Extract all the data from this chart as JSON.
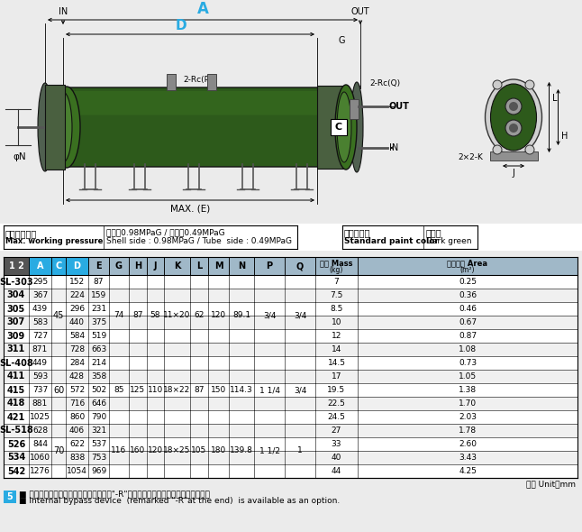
{
  "bg_color": "#ebebeb",
  "pressure_label_jp": "最高使用圧力",
  "pressure_label_en": "Max. working pressure",
  "pressure_value_jp": "胴側：0.98MPaG / 管側：0.49MPaG",
  "pressure_value_en": "Shell side : 0.98MPaG / Tube  side : 0.49MPaG",
  "color_label_jp": "標準塗装色",
  "color_label_en": "Standard paint color",
  "color_value_jp": "暗緑色",
  "color_value_en": "Dark green",
  "unit_note": "単位 Unit：mm",
  "note1_jp": "■ 管束内にバイパス回路（型式最後尾に\"-R\"付）を設けたタイプも製作致します。",
  "note1_en": "■ Internal bypass device  (remarked \"-R\"at the end)  is available as an option.",
  "note_num": "5",
  "header_cols": [
    "1 2",
    "A",
    "C",
    "D",
    "E",
    "G",
    "H",
    "J",
    "K",
    "L",
    "M",
    "N",
    "P",
    "Q",
    "質量 Mass\n(kg)",
    "伝熱面積 Area\n(m²)"
  ],
  "rows": [
    [
      "SL-303",
      "295",
      "",
      "152",
      "87",
      "",
      "",
      "",
      "",
      "",
      "",
      "",
      "",
      "",
      "7",
      "0.25"
    ],
    [
      "304",
      "367",
      "",
      "224",
      "159",
      "",
      "",
      "",
      "",
      "",
      "",
      "",
      "",
      "",
      "7.5",
      "0.36"
    ],
    [
      "305",
      "439",
      "45",
      "296",
      "231",
      "74",
      "87",
      "58",
      "11×20",
      "62",
      "120",
      "89.1",
      "3/4",
      "3/4",
      "8.5",
      "0.46"
    ],
    [
      "307",
      "583",
      "",
      "440",
      "375",
      "",
      "",
      "",
      "",
      "",
      "",
      "",
      "",
      "",
      "10",
      "0.67"
    ],
    [
      "309",
      "727",
      "",
      "584",
      "519",
      "",
      "",
      "",
      "",
      "",
      "",
      "",
      "",
      "",
      "12",
      "0.87"
    ],
    [
      "311",
      "871",
      "",
      "728",
      "663",
      "",
      "",
      "",
      "",
      "",
      "",
      "",
      "",
      "",
      "14",
      "1.08"
    ],
    [
      "SL-408",
      "449",
      "",
      "284",
      "214",
      "",
      "",
      "",
      "",
      "",
      "",
      "",
      "",
      "",
      "14.5",
      "0.73"
    ],
    [
      "411",
      "593",
      "",
      "428",
      "358",
      "",
      "",
      "",
      "",
      "",
      "",
      "",
      "",
      "",
      "17",
      "1.05"
    ],
    [
      "415",
      "737",
      "60",
      "572",
      "502",
      "85",
      "125",
      "110",
      "18×22",
      "87",
      "150",
      "114.3",
      "1 1/4",
      "3/4",
      "19.5",
      "1.38"
    ],
    [
      "418",
      "881",
      "",
      "716",
      "646",
      "",
      "",
      "",
      "",
      "",
      "",
      "",
      "",
      "",
      "22.5",
      "1.70"
    ],
    [
      "421",
      "1025",
      "",
      "860",
      "790",
      "",
      "",
      "",
      "",
      "",
      "",
      "",
      "",
      "",
      "24.5",
      "2.03"
    ],
    [
      "SL-518",
      "628",
      "",
      "406",
      "321",
      "",
      "",
      "",
      "",
      "",
      "",
      "",
      "",
      "",
      "27",
      "1.78"
    ],
    [
      "526",
      "844",
      "70",
      "622",
      "537",
      "116",
      "160",
      "120",
      "18×25",
      "105",
      "180",
      "139.8",
      "1 1/2",
      "1",
      "33",
      "2.60"
    ],
    [
      "534",
      "1060",
      "",
      "838",
      "753",
      "",
      "",
      "",
      "",
      "",
      "",
      "",
      "",
      "",
      "40",
      "3.43"
    ],
    [
      "542",
      "1276",
      "",
      "1054",
      "969",
      "",
      "",
      "",
      "",
      "",
      "",
      "",
      "",
      "",
      "44",
      "4.25"
    ]
  ],
  "groups": [
    {
      "start": 0,
      "end": 5,
      "C": "45",
      "G": "74",
      "H": "87",
      "J": "58",
      "K": "11×20",
      "L": "62",
      "M": "120",
      "N": "89.1",
      "P": "3/4",
      "Q": "3/4"
    },
    {
      "start": 6,
      "end": 10,
      "C": "60",
      "G": "85",
      "H": "125",
      "J": "110",
      "K": "18×22",
      "L": "87",
      "M": "150",
      "N": "114.3",
      "P": "1 1/4",
      "Q": "3/4"
    },
    {
      "start": 11,
      "end": 14,
      "C": "70",
      "G": "116",
      "H": "160",
      "J": "120",
      "K": "18×25",
      "L": "105",
      "M": "180",
      "N": "139.8",
      "P": "1 1/2",
      "Q": "1"
    }
  ],
  "sl_rows": [
    "SL-303",
    "SL-408",
    "SL-518"
  ],
  "body_color": "#2d5a1b",
  "body_color2": "#3a7020",
  "body_color3": "#4a8030",
  "flange_color": "#506050",
  "bracket_color": "#606060"
}
